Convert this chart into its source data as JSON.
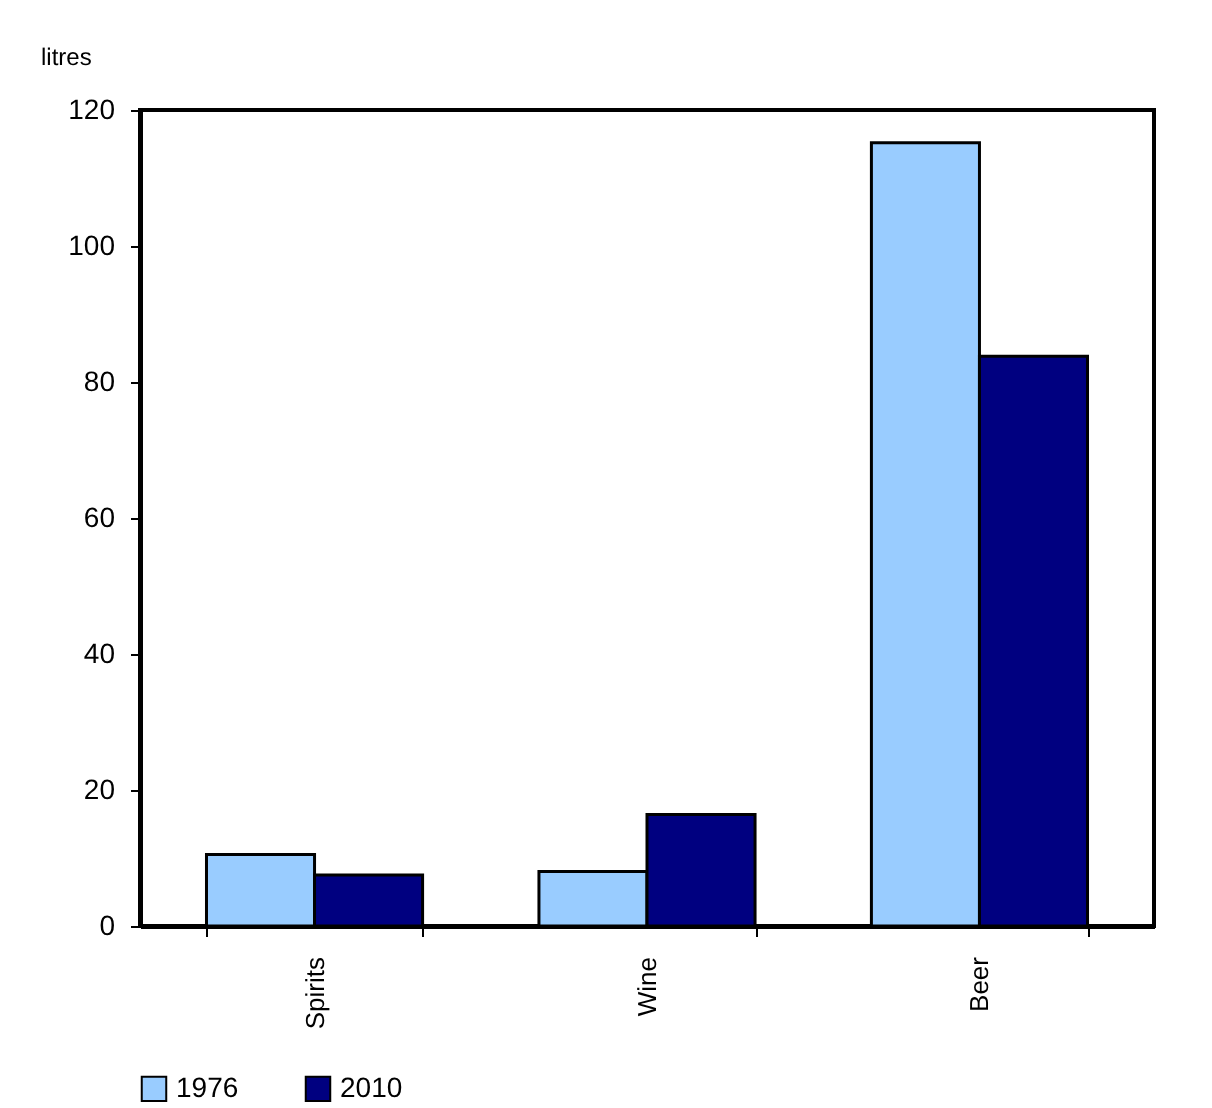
{
  "chart_data": {
    "type": "bar",
    "ylabel": "litres",
    "categories": [
      "Spirits",
      "Wine",
      "Beer"
    ],
    "series": [
      {
        "name": "1976",
        "color": "#99ccff",
        "values": [
          10.5,
          8,
          115.2
        ]
      },
      {
        "name": "2010",
        "color": "#000080",
        "values": [
          7.5,
          16.4,
          83.8
        ]
      }
    ],
    "ylim": [
      0,
      120
    ],
    "yticks": [
      0,
      20,
      40,
      60,
      80,
      100,
      120
    ],
    "grid": false,
    "legend": "bottom"
  }
}
